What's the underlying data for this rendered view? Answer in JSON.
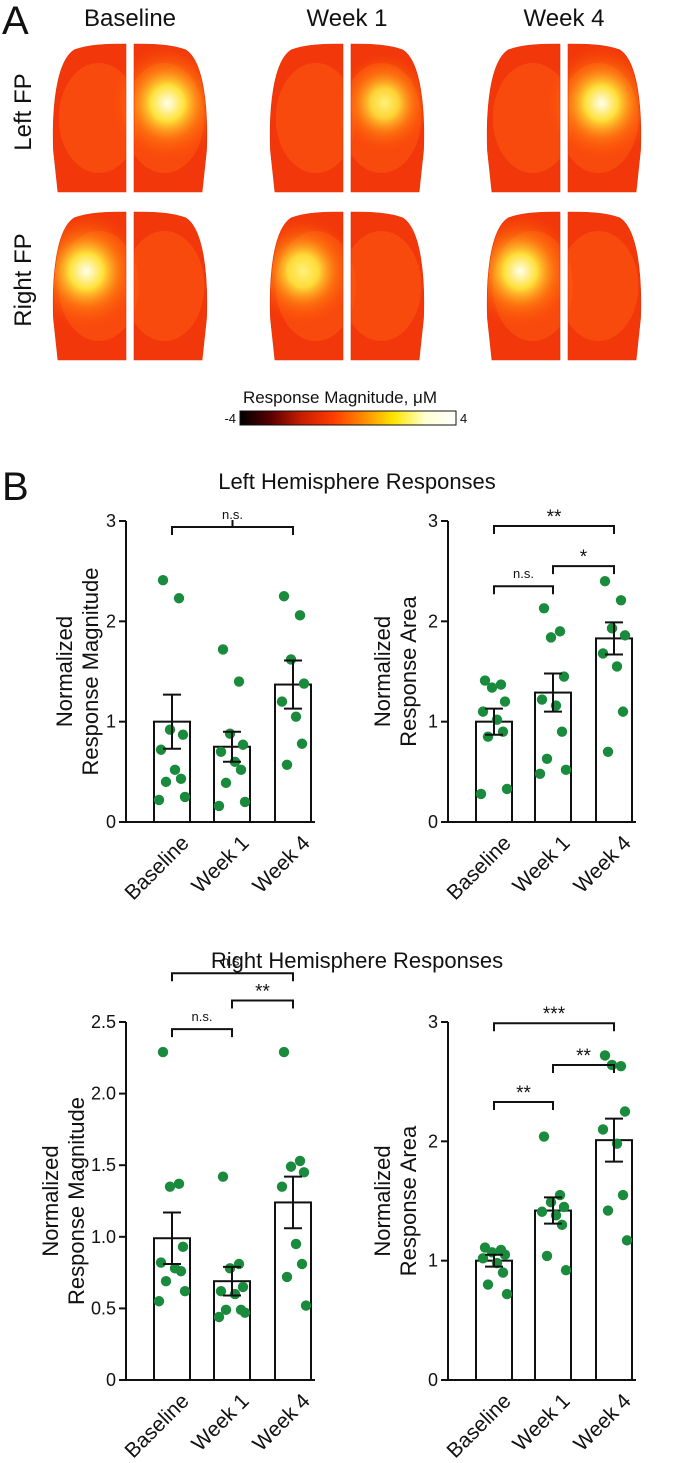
{
  "panel_a": {
    "letter": "A",
    "columns": [
      "Baseline",
      "Week 1",
      "Week 4"
    ],
    "rows": [
      "Left FP",
      "Right FP"
    ],
    "colorbar": {
      "title": "Response Magnitude, μM",
      "min_label": "-4",
      "max_label": "4",
      "colors": [
        "#000000",
        "#5a0000",
        "#c81e00",
        "#ff3a00",
        "#ff8a00",
        "#ffe600",
        "#ffffd0",
        "#ffffff"
      ]
    },
    "hotspots": [
      [
        {
          "side": "right",
          "level": 1.0
        },
        {
          "side": "right",
          "level": 0.6
        },
        {
          "side": "right",
          "level": 0.95
        }
      ],
      [
        {
          "side": "left",
          "level": 1.0
        },
        {
          "side": "left",
          "level": 0.8
        },
        {
          "side": "left",
          "level": 0.95
        }
      ]
    ]
  },
  "panel_b": {
    "letter": "B",
    "groups": [
      {
        "title": "Left Hemisphere Responses"
      },
      {
        "title": "Right Hemisphere Responses"
      }
    ]
  },
  "chart_data": [
    {
      "type": "bar",
      "group": "Left Hemisphere Responses",
      "ylabel": [
        "Normalized",
        "Response Magnitude"
      ],
      "categories": [
        "Baseline",
        "Week 1",
        "Week 4"
      ],
      "values": [
        1.0,
        0.75,
        1.37
      ],
      "sem": [
        0.27,
        0.15,
        0.24
      ],
      "ylim": [
        0,
        3
      ],
      "yticks": [
        0,
        1,
        2,
        3
      ],
      "ytick_labels": [
        "0",
        "1",
        "2",
        "3"
      ],
      "points": [
        [
          2.41,
          2.23,
          0.92,
          0.87,
          0.72,
          0.52,
          0.43,
          0.4,
          0.25,
          0.22
        ],
        [
          1.72,
          1.4,
          0.88,
          0.77,
          0.7,
          0.6,
          0.52,
          0.39,
          0.2,
          0.16
        ],
        [
          2.25,
          2.06,
          1.62,
          1.38,
          1.2,
          1.05,
          0.78,
          0.57
        ]
      ],
      "significance": [
        {
          "from": 0,
          "to": 2,
          "label": "n.s.",
          "y": 2.94,
          "center_tick": true
        }
      ],
      "point_color": "#1a8a3c"
    },
    {
      "type": "bar",
      "group": "Left Hemisphere Responses",
      "ylabel": [
        "Normalized",
        "Response Area"
      ],
      "categories": [
        "Baseline",
        "Week 1",
        "Week 4"
      ],
      "values": [
        1.0,
        1.29,
        1.83
      ],
      "sem": [
        0.13,
        0.19,
        0.16
      ],
      "ylim": [
        0,
        3
      ],
      "yticks": [
        0,
        1,
        2,
        3
      ],
      "ytick_labels": [
        "0",
        "1",
        "2",
        "3"
      ],
      "points": [
        [
          1.41,
          1.37,
          1.34,
          1.2,
          1.1,
          1.02,
          0.9,
          0.85,
          0.33,
          0.28
        ],
        [
          2.13,
          1.9,
          1.84,
          1.45,
          1.22,
          1.16,
          0.9,
          0.63,
          0.52,
          0.48
        ],
        [
          2.4,
          2.21,
          1.93,
          1.86,
          1.68,
          1.55,
          1.1,
          0.7
        ]
      ],
      "significance": [
        {
          "from": 0,
          "to": 2,
          "label": "**",
          "y": 2.95
        },
        {
          "from": 1,
          "to": 2,
          "label": "*",
          "y": 2.55
        },
        {
          "from": 0,
          "to": 1,
          "label": "n.s.",
          "y": 2.35
        }
      ],
      "point_color": "#1a8a3c"
    },
    {
      "type": "bar",
      "group": "Right Hemisphere Responses",
      "ylabel": [
        "Normalized",
        "Response Magnitude"
      ],
      "categories": [
        "Baseline",
        "Week 1",
        "Week 4"
      ],
      "values": [
        0.99,
        0.69,
        1.24
      ],
      "sem": [
        0.18,
        0.1,
        0.18
      ],
      "ylim": [
        0,
        2.5
      ],
      "yticks": [
        0,
        0.5,
        1.0,
        1.5,
        2.0,
        2.5
      ],
      "ytick_labels": [
        "0",
        "0.5",
        "1.0",
        "1.5",
        "2.0",
        "2.5"
      ],
      "points": [
        [
          2.29,
          1.37,
          1.35,
          0.93,
          0.82,
          0.78,
          0.76,
          0.69,
          0.62,
          0.55
        ],
        [
          1.42,
          0.81,
          0.78,
          0.65,
          0.62,
          0.6,
          0.49,
          0.49,
          0.47,
          0.44
        ],
        [
          2.29,
          1.53,
          1.49,
          1.45,
          1.35,
          0.95,
          0.81,
          0.72,
          0.52
        ]
      ],
      "significance": [
        {
          "from": 0,
          "to": 2,
          "label": "n.s.",
          "y": 2.84
        },
        {
          "from": 1,
          "to": 2,
          "label": "**",
          "y": 2.65
        },
        {
          "from": 0,
          "to": 1,
          "label": "n.s.",
          "y": 2.45
        }
      ],
      "point_color": "#1a8a3c"
    },
    {
      "type": "bar",
      "group": "Right Hemisphere Responses",
      "ylabel": [
        "Normalized",
        "Response Area"
      ],
      "categories": [
        "Baseline",
        "Week 1",
        "Week 4"
      ],
      "values": [
        1.0,
        1.42,
        2.01
      ],
      "sem": [
        0.05,
        0.11,
        0.18
      ],
      "ylim": [
        0,
        3
      ],
      "yticks": [
        0,
        1,
        2,
        3
      ],
      "ytick_labels": [
        "0",
        "1",
        "2",
        "3"
      ],
      "points": [
        [
          1.11,
          1.09,
          1.07,
          1.05,
          1.02,
          0.98,
          0.9,
          0.8,
          0.72
        ],
        [
          2.04,
          1.55,
          1.49,
          1.45,
          1.41,
          1.38,
          1.3,
          1.04,
          0.92
        ],
        [
          2.72,
          2.63,
          2.64,
          2.25,
          2.1,
          1.98,
          1.55,
          1.42,
          1.17
        ]
      ],
      "significance": [
        {
          "from": 0,
          "to": 2,
          "label": "***",
          "y": 2.99
        },
        {
          "from": 1,
          "to": 2,
          "label": "**",
          "y": 2.64
        },
        {
          "from": 0,
          "to": 1,
          "label": "**",
          "y": 2.33
        }
      ],
      "point_color": "#1a8a3c"
    }
  ]
}
